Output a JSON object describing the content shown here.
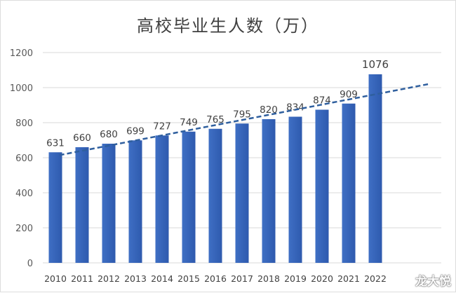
{
  "chart_data": {
    "type": "bar",
    "title": "高校毕业生人数（万）",
    "categories": [
      "2010",
      "2011",
      "2012",
      "2013",
      "2014",
      "2015",
      "2016",
      "2017",
      "2018",
      "2019",
      "2020",
      "2021",
      "2022"
    ],
    "values": [
      631,
      660,
      680,
      699,
      727,
      749,
      765,
      795,
      820,
      834,
      874,
      909,
      1076
    ],
    "data_labels": [
      "631",
      "660",
      "680",
      "699",
      "727",
      "749",
      "765",
      "795",
      "820",
      "834",
      "874",
      "909",
      "1076"
    ],
    "ylim": [
      0,
      1200
    ],
    "yticks": [
      0,
      200,
      400,
      600,
      800,
      1000,
      1200
    ],
    "xlabel": "",
    "ylabel": "",
    "grid": "horizontal",
    "legend": "none",
    "trendline": {
      "type": "linear",
      "style": "dashed",
      "forward_periods": 2
    },
    "colors": {
      "bar": "#3f6fc4",
      "bar_dark": "#2e5aae",
      "trendline": "#2f5f9e",
      "grid": "#d9d9d9",
      "text": "#404040"
    }
  },
  "watermark": "龙大悦"
}
